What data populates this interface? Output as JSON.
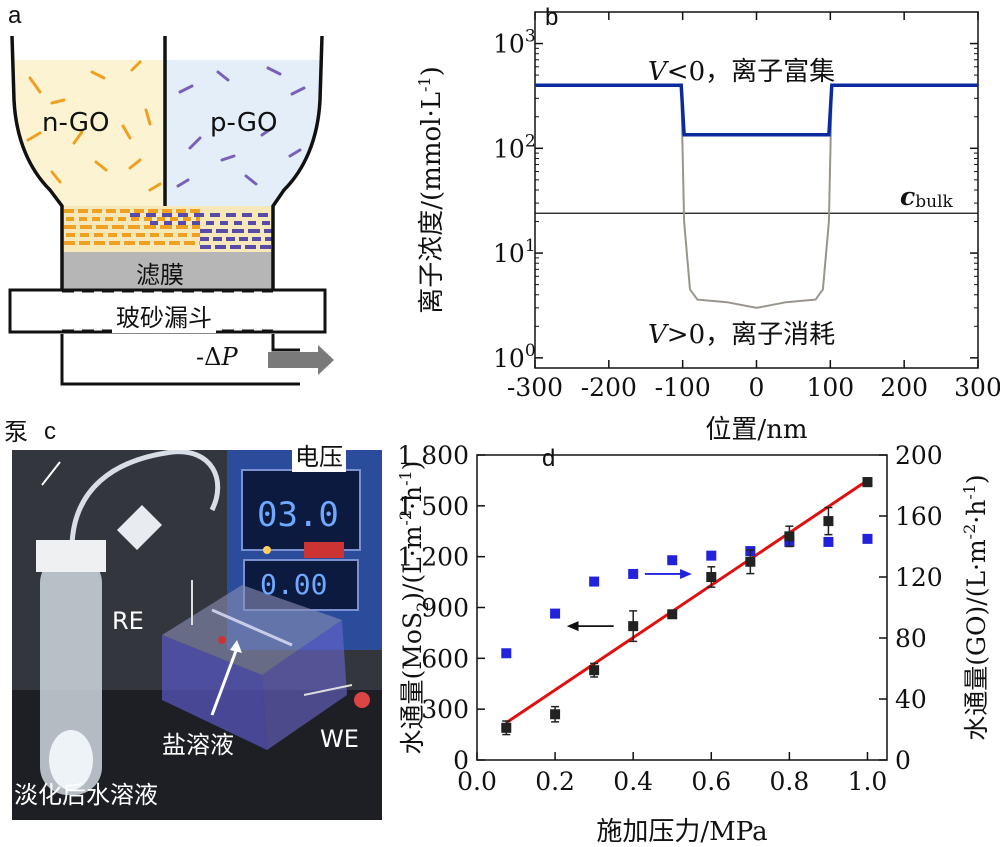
{
  "panel_labels": {
    "a": "a",
    "b": "b",
    "c": "c",
    "d": "d"
  },
  "panel_a": {
    "left_label": "n-GO",
    "right_label": "p-GO",
    "membrane_label": "滤膜",
    "funnel_label": "玻砂漏斗",
    "pressure_label_prefix": "-Δ",
    "pressure_label_var": "P"
  },
  "panel_c": {
    "pump_label": "泵",
    "voltage_label": "电压",
    "display_top": "03.0",
    "display_bottom": "0.00",
    "re_label": "RE",
    "we_label": "WE",
    "salt_label": "盐溶液",
    "product_label": "淡化后水溶液"
  },
  "chart_data": [
    {
      "type": "line",
      "panel": "b",
      "xlabel": "位置/nm",
      "ylabel": "离子浓度/(mmol·L",
      "ylabel_sup": "-1",
      "ylabel_close": ")",
      "x_ticks": [
        "-300",
        "-200",
        "-100",
        "0",
        "100",
        "200",
        "300"
      ],
      "xlim": [
        -300,
        300
      ],
      "y_scale": "log",
      "ylim": [
        0.8,
        2000
      ],
      "y_ticks": [
        {
          "base": "10",
          "exp": "0"
        },
        {
          "base": "10",
          "exp": "1"
        },
        {
          "base": "10",
          "exp": "2"
        },
        {
          "base": "10",
          "exp": "3"
        }
      ],
      "series": [
        {
          "color": "#0a2a9e",
          "x": [
            -300,
            -102,
            -98,
            98,
            102,
            300
          ],
          "y": [
            400,
            400,
            135,
            135,
            400,
            400
          ]
        },
        {
          "color": "#9a958c",
          "x": [
            -300,
            -102,
            -98,
            -90,
            -80,
            -40,
            0,
            40,
            80,
            90,
            98,
            102,
            300
          ],
          "y": [
            400,
            400,
            20,
            4.5,
            3.6,
            3.4,
            3.0,
            3.4,
            3.6,
            4.5,
            20,
            400,
            400
          ]
        }
      ],
      "reference_line": {
        "y": 24,
        "label_main": "c",
        "label_sub": "bulk"
      },
      "annotations": {
        "top_var": "V",
        "top_text": "<0，离子富集",
        "bottom_var": "V",
        "bottom_text": ">0，离子消耗"
      }
    },
    {
      "type": "scatter",
      "panel": "d",
      "xlabel": "施加压力/MPa",
      "ylabel_left": "水通量(MoS",
      "ylabel_left_sub": "2",
      "ylabel_left_rest": ")/(L·m",
      "ylabel_left_sup1": "-2",
      "ylabel_left_mid": "·h",
      "ylabel_left_sup2": "-1",
      "ylabel_left_end": ")",
      "ylabel_right": "水通量(GO)/(L·m",
      "ylabel_right_sup1": "-2",
      "ylabel_right_mid": "·h",
      "ylabel_right_sup2": "-1",
      "ylabel_right_end": ")",
      "x_ticks": [
        "0.0",
        "0.2",
        "0.4",
        "0.6",
        "0.8",
        "1.0"
      ],
      "xlim": [
        0,
        1.05
      ],
      "ylim_left": [
        0,
        1800
      ],
      "y_ticks_left": [
        "0",
        "300",
        "600",
        "900",
        "1 200",
        "1 500",
        "1 800"
      ],
      "ylim_right": [
        0,
        200
      ],
      "y_ticks_right": [
        "0",
        "40",
        "80",
        "120",
        "160",
        "200"
      ],
      "series": [
        {
          "axis": "left",
          "marker": "square",
          "color": "#222222",
          "x": [
            0.075,
            0.2,
            0.3,
            0.4,
            0.5,
            0.6,
            0.7,
            0.8,
            0.9,
            1.0
          ],
          "y": [
            190,
            270,
            530,
            790,
            860,
            1080,
            1170,
            1320,
            1410,
            1640
          ],
          "err": [
            40,
            45,
            40,
            90,
            20,
            60,
            70,
            60,
            80,
            25
          ]
        },
        {
          "axis": "right",
          "marker": "square",
          "color": "#2222dd",
          "x": [
            0.075,
            0.2,
            0.3,
            0.4,
            0.5,
            0.6,
            0.7,
            0.8,
            0.9,
            1.0
          ],
          "y": [
            70,
            96,
            117,
            122,
            131,
            134,
            137,
            143,
            143,
            145
          ]
        },
        {
          "axis": "left",
          "type": "line",
          "color": "#e01010",
          "x": [
            0.075,
            1.0
          ],
          "y": [
            220,
            1650
          ]
        }
      ]
    }
  ]
}
